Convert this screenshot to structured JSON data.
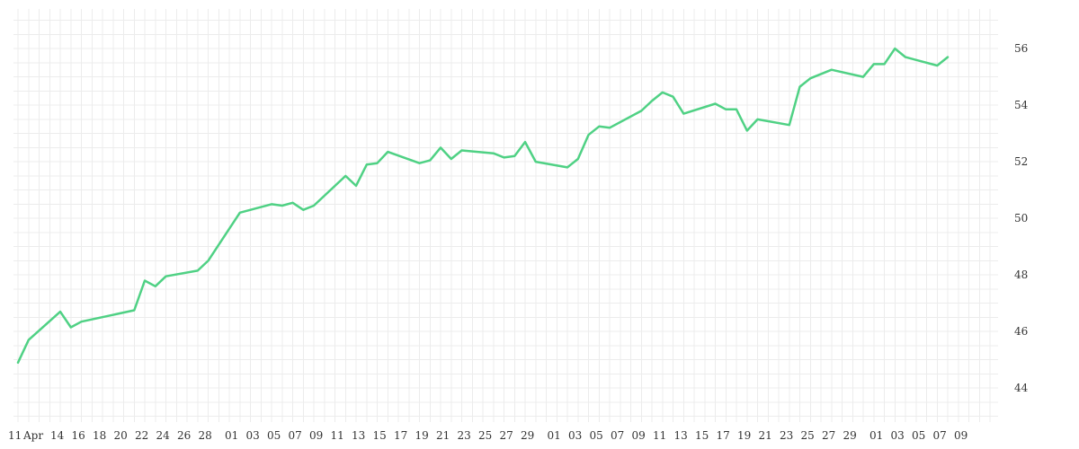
{
  "chart_data": {
    "type": "line",
    "title": "",
    "xlabel": "",
    "ylabel": "",
    "ylim": [
      42.8,
      57.4
    ],
    "x_tick_labels": [
      "11",
      "Apr",
      "14",
      "16",
      "18",
      "20",
      "22",
      "24",
      "26",
      "28",
      "01",
      "03",
      "05",
      "07",
      "09",
      "11",
      "13",
      "15",
      "17",
      "19",
      "21",
      "23",
      "25",
      "27",
      "29",
      "01",
      "03",
      "05",
      "07",
      "09",
      "11",
      "13",
      "15",
      "17",
      "19",
      "21",
      "23",
      "25",
      "27",
      "29",
      "01",
      "03",
      "05",
      "07",
      "09"
    ],
    "y_ticks": [
      44,
      46,
      48,
      50,
      52,
      54,
      56
    ],
    "y_axis_position": "right",
    "grid": true,
    "series": [
      {
        "color": "#4fd184",
        "points": [
          [
            "04-11",
            44.9
          ],
          [
            "04-12",
            45.7
          ],
          [
            "04-15",
            46.7
          ],
          [
            "04-16",
            46.15
          ],
          [
            "04-17",
            46.35
          ],
          [
            "04-22",
            46.75
          ],
          [
            "04-23",
            47.8
          ],
          [
            "04-24",
            47.6
          ],
          [
            "04-25",
            47.95
          ],
          [
            "04-28",
            48.15
          ],
          [
            "04-29",
            48.5
          ],
          [
            "05-02",
            50.2
          ],
          [
            "05-05",
            50.5
          ],
          [
            "05-06",
            50.45
          ],
          [
            "05-07",
            50.55
          ],
          [
            "05-08",
            50.3
          ],
          [
            "05-09",
            50.45
          ],
          [
            "05-12",
            51.5
          ],
          [
            "05-13",
            51.15
          ],
          [
            "05-14",
            51.9
          ],
          [
            "05-15",
            51.95
          ],
          [
            "05-16",
            52.35
          ],
          [
            "05-19",
            51.95
          ],
          [
            "05-20",
            52.05
          ],
          [
            "05-21",
            52.5
          ],
          [
            "05-22",
            52.1
          ],
          [
            "05-23",
            52.4
          ],
          [
            "05-26",
            52.3
          ],
          [
            "05-27",
            52.15
          ],
          [
            "05-28",
            52.2
          ],
          [
            "05-29",
            52.7
          ],
          [
            "05-30",
            52.0
          ],
          [
            "06-02",
            51.8
          ],
          [
            "06-03",
            52.1
          ],
          [
            "06-04",
            52.95
          ],
          [
            "06-05",
            53.25
          ],
          [
            "06-06",
            53.2
          ],
          [
            "06-09",
            53.8
          ],
          [
            "06-10",
            54.15
          ],
          [
            "06-11",
            54.45
          ],
          [
            "06-12",
            54.3
          ],
          [
            "06-13",
            53.7
          ],
          [
            "06-16",
            54.05
          ],
          [
            "06-17",
            53.85
          ],
          [
            "06-18",
            53.85
          ],
          [
            "06-19",
            53.1
          ],
          [
            "06-20",
            53.5
          ],
          [
            "06-23",
            53.3
          ],
          [
            "06-24",
            54.65
          ],
          [
            "06-25",
            54.95
          ],
          [
            "06-27",
            55.25
          ],
          [
            "06-30",
            55.0
          ],
          [
            "07-01",
            55.45
          ],
          [
            "07-02",
            55.45
          ],
          [
            "07-03",
            56.0
          ],
          [
            "07-04",
            55.7
          ],
          [
            "07-07",
            55.4
          ],
          [
            "07-08",
            55.7
          ]
        ]
      }
    ]
  }
}
